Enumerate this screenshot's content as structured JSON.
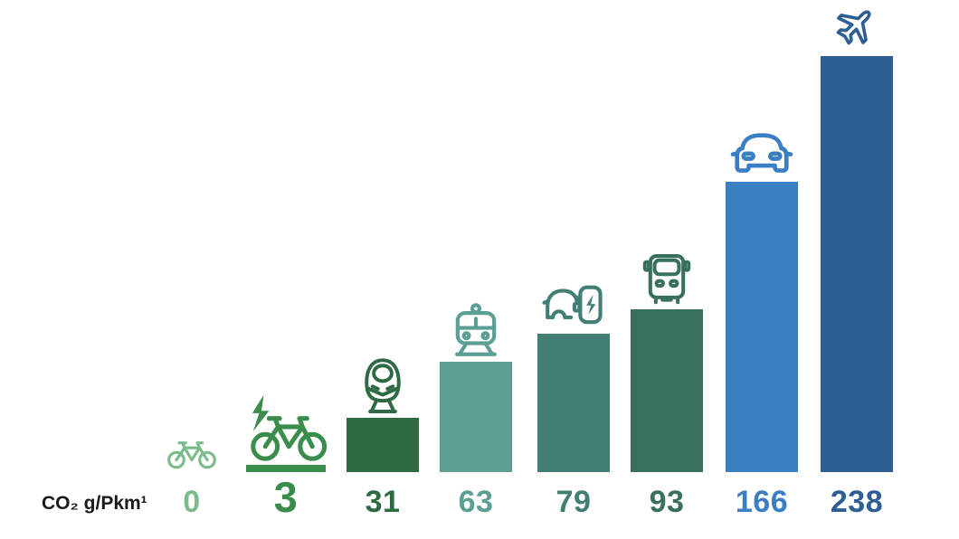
{
  "axis_label": "CO₂ g/Pkm¹",
  "chart_data": {
    "type": "bar",
    "title": "",
    "ylabel": "CO₂ g/Pkm¹",
    "categories": [
      "bicycle",
      "e-bike",
      "high-speed-train",
      "tram",
      "electric-car-charging",
      "bus",
      "car",
      "airplane"
    ],
    "values": [
      0,
      3,
      31,
      63,
      79,
      93,
      166,
      238
    ],
    "ylim": [
      0,
      238
    ],
    "grid": false,
    "legend": "none",
    "items": [
      {
        "mode": "bicycle",
        "value": 0,
        "color": "#7cbc8c",
        "icon": "bicycle-icon"
      },
      {
        "mode": "e-bike",
        "value": 3,
        "color": "#3a8d4d",
        "icon": "e-bike-icon"
      },
      {
        "mode": "high-speed-train",
        "value": 31,
        "color": "#2e6b44",
        "icon": "high-speed-train-icon"
      },
      {
        "mode": "tram",
        "value": 63,
        "color": "#5c9f95",
        "icon": "tram-icon"
      },
      {
        "mode": "electric-car-charging",
        "value": 79,
        "color": "#417f75",
        "icon": "electric-car-charging-icon"
      },
      {
        "mode": "bus",
        "value": 93,
        "color": "#38705f",
        "icon": "bus-icon"
      },
      {
        "mode": "car",
        "value": 166,
        "color": "#3a7fc3",
        "icon": "car-icon"
      },
      {
        "mode": "airplane",
        "value": 238,
        "color": "#2d5e94",
        "icon": "airplane-icon"
      }
    ]
  }
}
